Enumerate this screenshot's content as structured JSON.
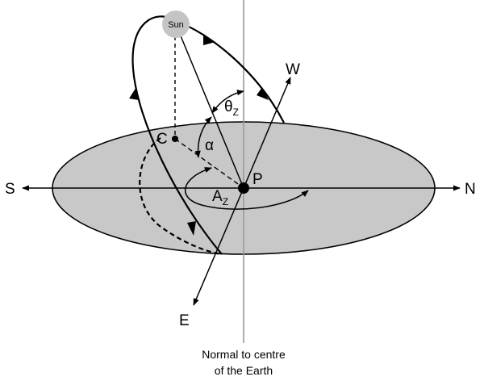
{
  "labels": {
    "sun": "Sun",
    "south": "S",
    "north": "N",
    "west": "W",
    "east": "E",
    "point_p": "P",
    "point_c": "C",
    "alpha": "α",
    "theta_symbol": "θ",
    "theta_sub": "Z",
    "azimuth_symbol": "A",
    "azimuth_sub": "Z",
    "caption_line1": "Normal to centre",
    "caption_line2": "of the Earth"
  },
  "colors": {
    "horizon_fill": "#c8c8c8",
    "sun_fill": "#c4c4c4",
    "line": "#000000",
    "normal_line": "#9a9a9a"
  }
}
